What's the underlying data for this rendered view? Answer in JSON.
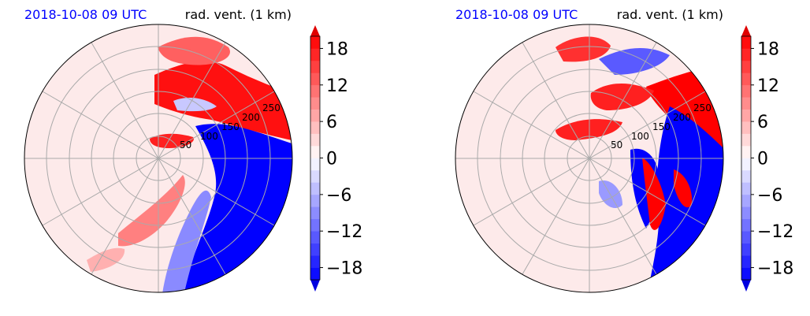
{
  "chart_data": [
    {
      "type": "heatmap",
      "projection": "polar",
      "title_left": "2018-10-08 09 UTC",
      "title_right": "rad. vent. (1 km)",
      "ring_labels": [
        "50",
        "100",
        "150",
        "200",
        "250"
      ],
      "colorbar": {
        "ticks": [
          18,
          12,
          6,
          0,
          -6,
          -12,
          -18
        ],
        "tick_labels": [
          "18",
          "12",
          "6",
          "0",
          "−6",
          "−12",
          "−18"
        ],
        "range": [
          -20,
          20
        ],
        "extend": "both",
        "colormap": "bwr"
      }
    },
    {
      "type": "heatmap",
      "projection": "polar",
      "title_left": "2018-10-08 09 UTC",
      "title_right": "rad. vent. (1 km)",
      "ring_labels": [
        "50",
        "100",
        "150",
        "200",
        "250"
      ],
      "colorbar": {
        "ticks": [
          18,
          12,
          6,
          0,
          -6,
          -12,
          -18
        ],
        "tick_labels": [
          "18",
          "12",
          "6",
          "0",
          "−6",
          "−12",
          "−18"
        ],
        "range": [
          -20,
          20
        ],
        "extend": "both",
        "colormap": "bwr"
      }
    }
  ],
  "colors": {
    "date_title": "#0000ff",
    "title": "#000000",
    "grid": "#aaaaaa",
    "background_field": "#fdeaea",
    "positive": "#ff0000",
    "negative": "#0000ff"
  }
}
